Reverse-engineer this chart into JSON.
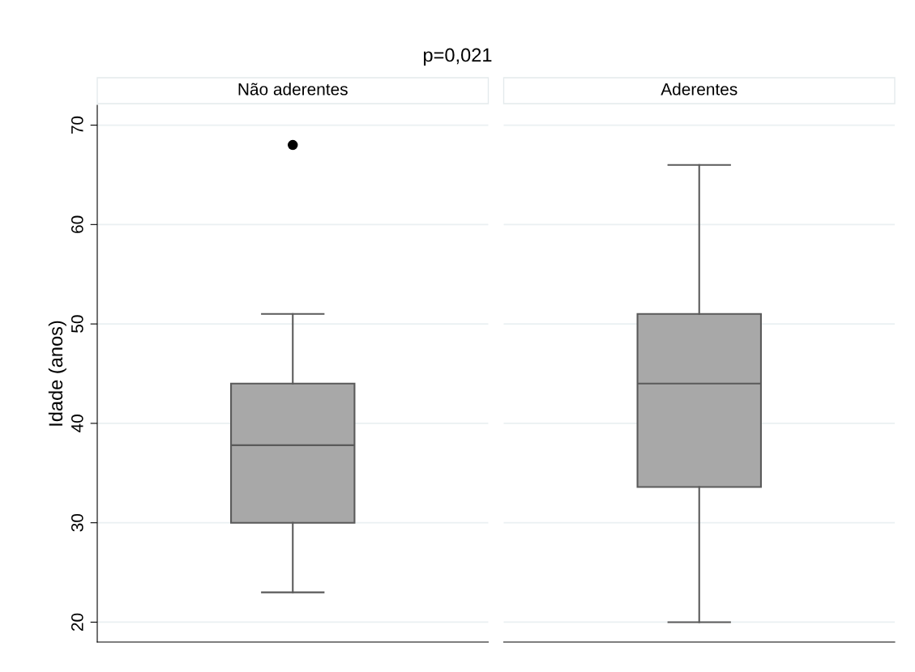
{
  "chart_data": {
    "type": "box",
    "title": "p=0,021",
    "ylabel": "Idade (anos)",
    "categories": [
      "Não aderentes",
      "Aderentes"
    ],
    "boxes": [
      {
        "low": 23,
        "q1": 30,
        "median": 37.8,
        "q3": 44,
        "high": 51,
        "outliers": [
          68
        ]
      },
      {
        "low": 20,
        "q1": 33.6,
        "median": 44,
        "q3": 51,
        "high": 66
      }
    ],
    "color": "#a8a8a8",
    "ylim": [
      18,
      72
    ],
    "yticks": [
      20,
      30,
      40,
      50,
      60,
      70
    ],
    "grid": "y",
    "tick_labels": "y"
  }
}
